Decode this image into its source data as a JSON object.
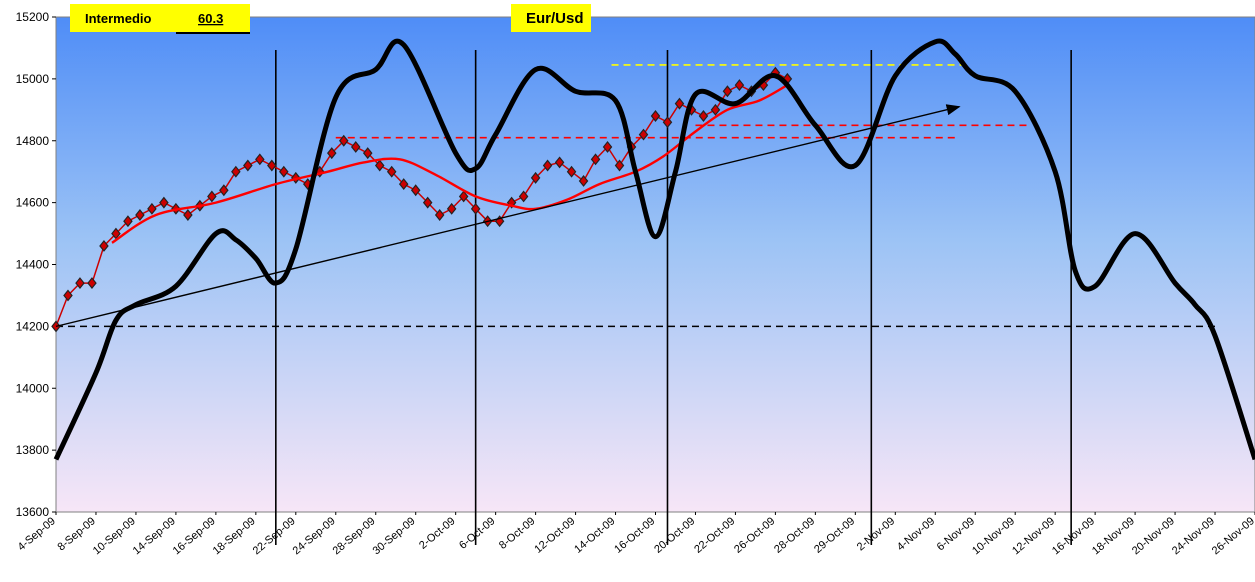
{
  "chart_data": {
    "type": "line",
    "title": "Eur/Usd",
    "badge": {
      "label": "Intermedio",
      "value": "60.3"
    },
    "ylim": [
      13600,
      15200
    ],
    "yticks": [
      13600,
      13800,
      14000,
      14200,
      14400,
      14600,
      14800,
      15000,
      15200
    ],
    "x_labels": [
      "4-Sep-09",
      "8-Sep-09",
      "10-Sep-09",
      "14-Sep-09",
      "16-Sep-09",
      "18-Sep-09",
      "22-Sep-09",
      "24-Sep-09",
      "28-Sep-09",
      "30-Sep-09",
      "2-Oct-09",
      "6-Oct-09",
      "8-Oct-09",
      "12-Oct-09",
      "14-Oct-09",
      "16-Oct-09",
      "20-Oct-09",
      "22-Oct-09",
      "26-Oct-09",
      "28-Oct-09",
      "29-Oct-09",
      "2-Nov-09",
      "4-Nov-09",
      "6-Nov-09",
      "10-Nov-09",
      "12-Nov-09",
      "16-Nov-09",
      "18-Nov-09",
      "20-Nov-09",
      "24-Nov-09",
      "26-Nov-09"
    ],
    "x_range": [
      0,
      30
    ],
    "series": [
      {
        "role": "price",
        "color": "#cc0000",
        "marker_color": "#222222",
        "x": [
          0,
          0.3,
          0.6,
          0.9,
          1.2,
          1.5,
          1.8,
          2.1,
          2.4,
          2.7,
          3.0,
          3.3,
          3.6,
          3.9,
          4.2,
          4.5,
          4.8,
          5.1,
          5.4,
          5.7,
          6.0,
          6.3,
          6.6,
          6.9,
          7.2,
          7.5,
          7.8,
          8.1,
          8.4,
          8.7,
          9.0,
          9.3,
          9.6,
          9.9,
          10.2,
          10.5,
          10.8,
          11.1,
          11.4,
          11.7,
          12.0,
          12.3,
          12.6,
          12.9,
          13.2,
          13.5,
          13.8,
          14.1,
          14.4,
          14.7,
          15.0,
          15.3,
          15.6,
          15.9,
          16.2,
          16.5,
          16.8,
          17.1,
          17.4,
          17.7,
          18.0,
          18.3
        ],
        "values": [
          14200,
          14300,
          14340,
          14340,
          14460,
          14500,
          14540,
          14560,
          14580,
          14600,
          14580,
          14560,
          14590,
          14620,
          14640,
          14700,
          14720,
          14740,
          14720,
          14700,
          14680,
          14660,
          14700,
          14760,
          14800,
          14780,
          14760,
          14720,
          14700,
          14660,
          14640,
          14600,
          14560,
          14580,
          14620,
          14580,
          14540,
          14540,
          14600,
          14620,
          14680,
          14720,
          14730,
          14700,
          14670,
          14740,
          14780,
          14720,
          14780,
          14820,
          14880,
          14860,
          14920,
          14900,
          14880,
          14900,
          14960,
          14980,
          14960,
          14980,
          15020,
          15000
        ]
      },
      {
        "role": "moving-average",
        "color": "#ff0000",
        "x": [
          1.4,
          2.5,
          4.0,
          5.5,
          6.8,
          7.7,
          8.6,
          9.5,
          10.5,
          11.4,
          12.0,
          12.8,
          13.6,
          14.5,
          15.2,
          16.0,
          16.8,
          17.6,
          18.3
        ],
        "values": [
          14470,
          14560,
          14600,
          14660,
          14700,
          14730,
          14740,
          14690,
          14620,
          14590,
          14580,
          14610,
          14660,
          14700,
          14750,
          14830,
          14900,
          14930,
          14980
        ]
      },
      {
        "role": "cycle-wave",
        "color": "#000000",
        "x": [
          0,
          1,
          1.5,
          2,
          3,
          4,
          4.5,
          5,
          5.5,
          6,
          7,
          8,
          8.7,
          10,
          10.5,
          11,
          12,
          13,
          14,
          14.5,
          15,
          15.5,
          16,
          17,
          18,
          19,
          20,
          21,
          22,
          22.5,
          23,
          24,
          25,
          25.5,
          26,
          27,
          28,
          28.5,
          29,
          30
        ],
        "values": [
          13770,
          14050,
          14220,
          14270,
          14330,
          14500,
          14480,
          14420,
          14340,
          14450,
          14940,
          15030,
          15110,
          14760,
          14710,
          14820,
          15030,
          14960,
          14930,
          14700,
          14490,
          14700,
          14950,
          14920,
          15010,
          14850,
          14720,
          15010,
          15120,
          15080,
          15010,
          14960,
          14700,
          14380,
          14330,
          14500,
          14340,
          14270,
          14170,
          13770
        ]
      }
    ],
    "trendline": {
      "x": [
        0,
        22.6
      ],
      "values": [
        14200,
        14910
      ]
    },
    "hlines": [
      {
        "value": 14200,
        "x": [
          0,
          29.1
        ],
        "color": "#000000"
      },
      {
        "value": 14810,
        "x": [
          7.0,
          22.6
        ],
        "color": "#ff0000"
      },
      {
        "value": 14850,
        "x": [
          16.0,
          24.4
        ],
        "color": "#ff0000"
      },
      {
        "value": 15045,
        "x": [
          13.9,
          22.9
        ],
        "color": "#ffff00"
      }
    ],
    "vlines": [
      5.5,
      10.5,
      15.3,
      20.4,
      25.4
    ],
    "grid": false,
    "legend": "none",
    "background": {
      "top": "#4f8df7",
      "bottom": "#f7e6f7"
    },
    "tag_color": "#ffff00"
  }
}
